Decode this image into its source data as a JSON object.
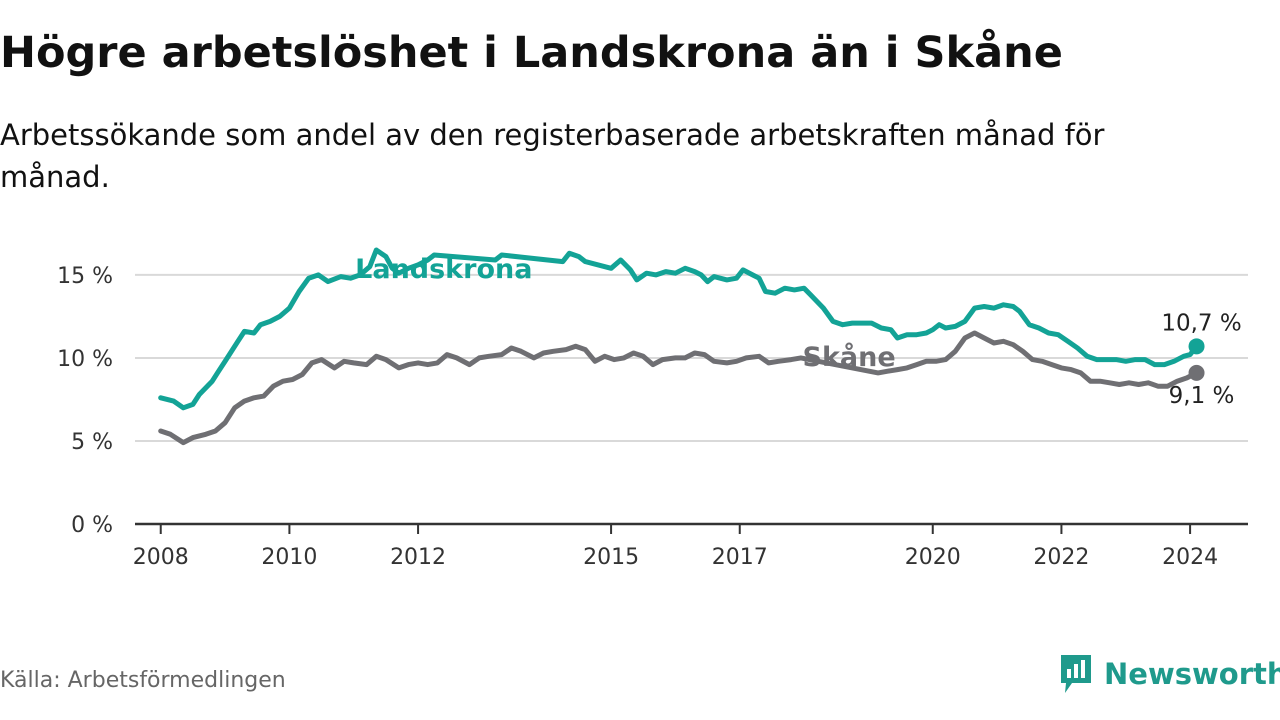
{
  "header": {
    "title": "Högre arbetslöshet i Landskrona än i Skåne",
    "subtitle": "Arbetssökande som andel av den registerbaserade arbetskraften månad för månad."
  },
  "footer": {
    "source": "Källa: Arbetsförmedlingen",
    "brand": "Newsworthy",
    "brand_icon": "newsworthy-logo-icon"
  },
  "colors": {
    "landskrona": "#13a396",
    "skane": "#6f6f73",
    "grid": "#d9d9d9",
    "axis": "#333333",
    "brand": "#1f9a8c"
  },
  "chart_data": {
    "type": "line",
    "title": "Högre arbetslöshet i Landskrona än i Skåne",
    "xlabel": "",
    "ylabel": "",
    "xlim": [
      2007.6,
      2024.9
    ],
    "ylim": [
      0,
      16.5
    ],
    "grid": true,
    "legend": "inline labels",
    "x_ticks": [
      {
        "value": 2008,
        "label": "2008"
      },
      {
        "value": 2010,
        "label": "2010"
      },
      {
        "value": 2012,
        "label": "2012"
      },
      {
        "value": 2015,
        "label": "2015"
      },
      {
        "value": 2017,
        "label": "2017"
      },
      {
        "value": 2020,
        "label": "2020"
      },
      {
        "value": 2022,
        "label": "2022"
      },
      {
        "value": 2024,
        "label": "2024"
      }
    ],
    "y_ticks": [
      {
        "value": 0,
        "label": "0 %"
      },
      {
        "value": 5,
        "label": "5 %"
      },
      {
        "value": 10,
        "label": "10 %"
      },
      {
        "value": 15,
        "label": "15 %"
      }
    ],
    "series": [
      {
        "name": "Landskrona",
        "color": "#13a396",
        "label_at": [
          2012.4,
          14.8
        ],
        "end_label": "10,7 %",
        "points": [
          [
            2008.0,
            7.6
          ],
          [
            2008.2,
            7.4
          ],
          [
            2008.35,
            7.0
          ],
          [
            2008.5,
            7.2
          ],
          [
            2008.6,
            7.8
          ],
          [
            2008.8,
            8.6
          ],
          [
            2008.9,
            9.2
          ],
          [
            2009.0,
            9.8
          ],
          [
            2009.2,
            11.0
          ],
          [
            2009.3,
            11.6
          ],
          [
            2009.45,
            11.5
          ],
          [
            2009.55,
            12.0
          ],
          [
            2009.7,
            12.2
          ],
          [
            2009.85,
            12.5
          ],
          [
            2010.0,
            13.0
          ],
          [
            2010.15,
            14.0
          ],
          [
            2010.3,
            14.8
          ],
          [
            2010.45,
            15.0
          ],
          [
            2010.6,
            14.6
          ],
          [
            2010.8,
            14.9
          ],
          [
            2010.95,
            14.8
          ],
          [
            2011.1,
            15.0
          ],
          [
            2011.25,
            15.5
          ],
          [
            2011.35,
            16.5
          ],
          [
            2011.5,
            16.1
          ],
          [
            2011.6,
            15.4
          ],
          [
            2011.7,
            15.1
          ],
          [
            2011.85,
            15.4
          ],
          [
            2012.0,
            15.6
          ],
          [
            2012.15,
            15.9
          ],
          [
            2012.25,
            16.2
          ],
          [
            2013.2,
            15.9
          ],
          [
            2013.3,
            16.2
          ],
          [
            2014.25,
            15.8
          ],
          [
            2014.35,
            16.3
          ],
          [
            2014.5,
            16.1
          ],
          [
            2014.6,
            15.8
          ],
          [
            2015.0,
            15.4
          ],
          [
            2015.15,
            15.9
          ],
          [
            2015.3,
            15.3
          ],
          [
            2015.4,
            14.7
          ],
          [
            2015.55,
            15.1
          ],
          [
            2015.7,
            15.0
          ],
          [
            2015.85,
            15.2
          ],
          [
            2016.0,
            15.1
          ],
          [
            2016.15,
            15.4
          ],
          [
            2016.3,
            15.2
          ],
          [
            2016.4,
            15.0
          ],
          [
            2016.5,
            14.6
          ],
          [
            2016.6,
            14.9
          ],
          [
            2016.8,
            14.7
          ],
          [
            2016.95,
            14.8
          ],
          [
            2017.05,
            15.3
          ],
          [
            2017.2,
            15.0
          ],
          [
            2017.3,
            14.8
          ],
          [
            2017.4,
            14.0
          ],
          [
            2017.55,
            13.9
          ],
          [
            2017.7,
            14.2
          ],
          [
            2017.85,
            14.1
          ],
          [
            2018.0,
            14.2
          ],
          [
            2018.1,
            13.8
          ],
          [
            2018.3,
            13.0
          ],
          [
            2018.45,
            12.2
          ],
          [
            2018.6,
            12.0
          ],
          [
            2018.75,
            12.1
          ],
          [
            2018.9,
            12.1
          ],
          [
            2019.05,
            12.1
          ],
          [
            2019.2,
            11.8
          ],
          [
            2019.35,
            11.7
          ],
          [
            2019.45,
            11.2
          ],
          [
            2019.6,
            11.4
          ],
          [
            2019.75,
            11.4
          ],
          [
            2019.9,
            11.5
          ],
          [
            2020.0,
            11.7
          ],
          [
            2020.1,
            12.0
          ],
          [
            2020.2,
            11.8
          ],
          [
            2020.35,
            11.9
          ],
          [
            2020.5,
            12.2
          ],
          [
            2020.65,
            13.0
          ],
          [
            2020.8,
            13.1
          ],
          [
            2020.95,
            13.0
          ],
          [
            2021.1,
            13.2
          ],
          [
            2021.25,
            13.1
          ],
          [
            2021.35,
            12.8
          ],
          [
            2021.5,
            12.0
          ],
          [
            2021.65,
            11.8
          ],
          [
            2021.8,
            11.5
          ],
          [
            2021.95,
            11.4
          ],
          [
            2022.1,
            11.0
          ],
          [
            2022.25,
            10.6
          ],
          [
            2022.4,
            10.1
          ],
          [
            2022.55,
            9.9
          ],
          [
            2022.7,
            9.9
          ],
          [
            2022.85,
            9.9
          ],
          [
            2023.0,
            9.8
          ],
          [
            2023.15,
            9.9
          ],
          [
            2023.3,
            9.9
          ],
          [
            2023.45,
            9.6
          ],
          [
            2023.6,
            9.6
          ],
          [
            2023.75,
            9.8
          ],
          [
            2023.9,
            10.1
          ],
          [
            2024.0,
            10.2
          ],
          [
            2024.1,
            10.7
          ]
        ]
      },
      {
        "name": "Skåne",
        "color": "#6f6f73",
        "label_at": [
          2018.7,
          9.5
        ],
        "end_label": "9,1 %",
        "points": [
          [
            2008.0,
            5.6
          ],
          [
            2008.15,
            5.4
          ],
          [
            2008.35,
            4.9
          ],
          [
            2008.5,
            5.2
          ],
          [
            2008.7,
            5.4
          ],
          [
            2008.85,
            5.6
          ],
          [
            2009.0,
            6.1
          ],
          [
            2009.15,
            7.0
          ],
          [
            2009.3,
            7.4
          ],
          [
            2009.45,
            7.6
          ],
          [
            2009.6,
            7.7
          ],
          [
            2009.75,
            8.3
          ],
          [
            2009.9,
            8.6
          ],
          [
            2010.05,
            8.7
          ],
          [
            2010.2,
            9.0
          ],
          [
            2010.35,
            9.7
          ],
          [
            2010.5,
            9.9
          ],
          [
            2010.7,
            9.4
          ],
          [
            2010.85,
            9.8
          ],
          [
            2011.0,
            9.7
          ],
          [
            2011.2,
            9.6
          ],
          [
            2011.35,
            10.1
          ],
          [
            2011.5,
            9.9
          ],
          [
            2011.7,
            9.4
          ],
          [
            2011.85,
            9.6
          ],
          [
            2012.0,
            9.7
          ],
          [
            2012.15,
            9.6
          ],
          [
            2012.3,
            9.7
          ],
          [
            2012.45,
            10.2
          ],
          [
            2012.6,
            10.0
          ],
          [
            2012.8,
            9.6
          ],
          [
            2012.95,
            10.0
          ],
          [
            2013.1,
            10.1
          ],
          [
            2013.3,
            10.2
          ],
          [
            2013.45,
            10.6
          ],
          [
            2013.6,
            10.4
          ],
          [
            2013.8,
            10.0
          ],
          [
            2013.95,
            10.3
          ],
          [
            2014.1,
            10.4
          ],
          [
            2014.3,
            10.5
          ],
          [
            2014.45,
            10.7
          ],
          [
            2014.6,
            10.5
          ],
          [
            2014.75,
            9.8
          ],
          [
            2014.9,
            10.1
          ],
          [
            2015.05,
            9.9
          ],
          [
            2015.2,
            10.0
          ],
          [
            2015.35,
            10.3
          ],
          [
            2015.5,
            10.1
          ],
          [
            2015.65,
            9.6
          ],
          [
            2015.8,
            9.9
          ],
          [
            2016.0,
            10.0
          ],
          [
            2016.15,
            10.0
          ],
          [
            2016.3,
            10.3
          ],
          [
            2016.45,
            10.2
          ],
          [
            2016.6,
            9.8
          ],
          [
            2016.8,
            9.7
          ],
          [
            2016.95,
            9.8
          ],
          [
            2017.1,
            10.0
          ],
          [
            2017.3,
            10.1
          ],
          [
            2017.45,
            9.7
          ],
          [
            2017.6,
            9.8
          ],
          [
            2017.8,
            9.9
          ],
          [
            2017.95,
            10.0
          ],
          [
            2019.15,
            9.1
          ],
          [
            2019.3,
            9.2
          ],
          [
            2019.45,
            9.3
          ],
          [
            2019.6,
            9.4
          ],
          [
            2019.75,
            9.6
          ],
          [
            2019.9,
            9.8
          ],
          [
            2020.05,
            9.8
          ],
          [
            2020.2,
            9.9
          ],
          [
            2020.35,
            10.4
          ],
          [
            2020.5,
            11.2
          ],
          [
            2020.65,
            11.5
          ],
          [
            2020.8,
            11.2
          ],
          [
            2020.95,
            10.9
          ],
          [
            2021.1,
            11.0
          ],
          [
            2021.25,
            10.8
          ],
          [
            2021.4,
            10.4
          ],
          [
            2021.55,
            9.9
          ],
          [
            2021.7,
            9.8
          ],
          [
            2021.85,
            9.6
          ],
          [
            2022.0,
            9.4
          ],
          [
            2022.15,
            9.3
          ],
          [
            2022.3,
            9.1
          ],
          [
            2022.45,
            8.6
          ],
          [
            2022.6,
            8.6
          ],
          [
            2022.75,
            8.5
          ],
          [
            2022.9,
            8.4
          ],
          [
            2023.05,
            8.5
          ],
          [
            2023.2,
            8.4
          ],
          [
            2023.35,
            8.5
          ],
          [
            2023.5,
            8.3
          ],
          [
            2023.65,
            8.3
          ],
          [
            2023.8,
            8.6
          ],
          [
            2023.95,
            8.8
          ],
          [
            2024.1,
            9.1
          ]
        ]
      }
    ]
  }
}
